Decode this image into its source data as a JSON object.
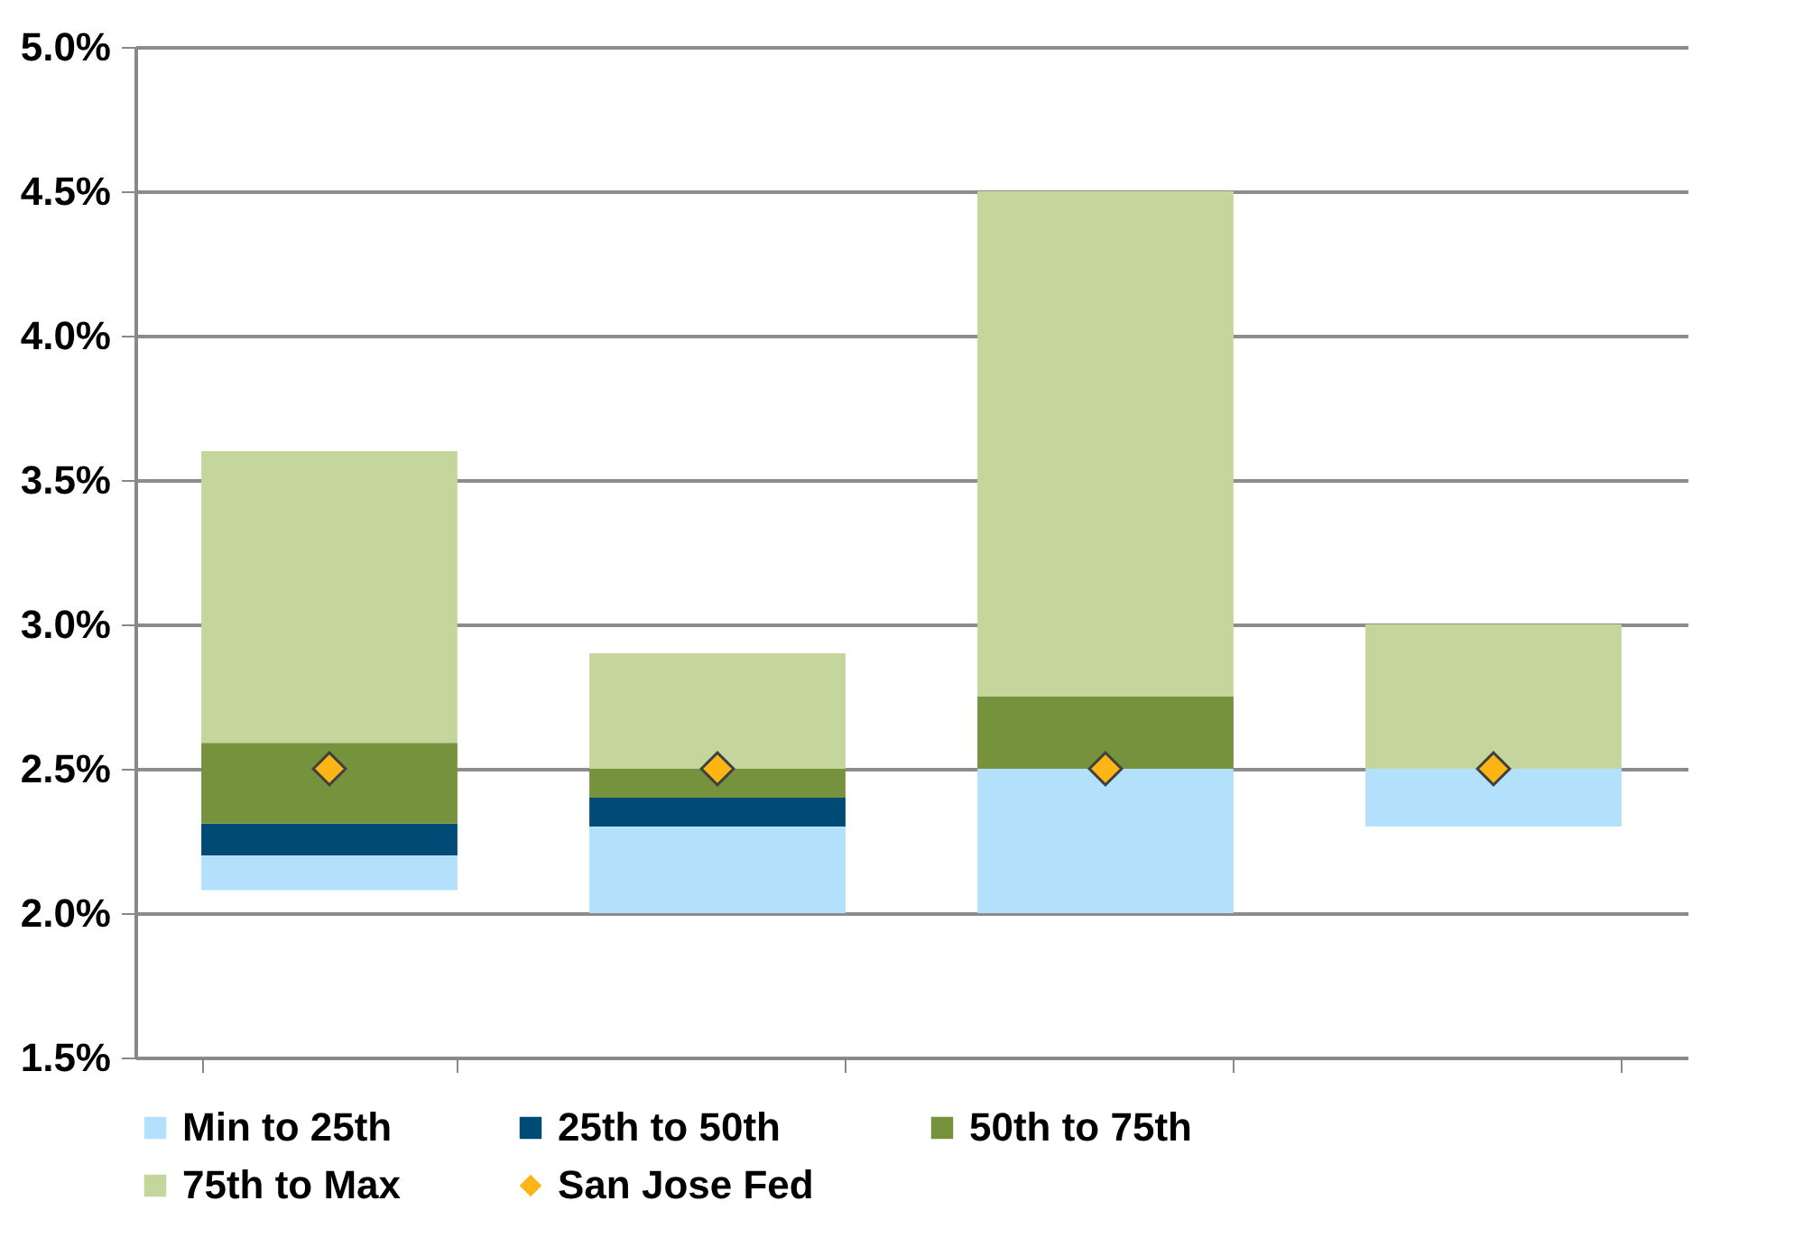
{
  "chart_data": {
    "type": "bar",
    "categories": [
      null,
      null,
      null,
      null
    ],
    "series": [
      {
        "name": "Min to 25th",
        "color": "#b3e0fb",
        "base": [
          2.08,
          2.0,
          2.0,
          2.3
        ],
        "values": [
          0.12,
          0.3,
          0.5,
          0.2
        ]
      },
      {
        "name": "25th to 50th",
        "color": "#004a76",
        "base": [
          2.2,
          2.3,
          null,
          null
        ],
        "values": [
          0.11,
          0.1,
          null,
          null
        ]
      },
      {
        "name": "50th to 75th",
        "color": "#77923c",
        "base": [
          2.31,
          2.4,
          2.5,
          null
        ],
        "values": [
          0.28,
          0.1,
          0.25,
          null
        ]
      },
      {
        "name": "75th to Max",
        "color": "#c4d69c",
        "base": [
          2.59,
          2.5,
          2.75,
          2.5
        ],
        "values": [
          1.01,
          0.4,
          1.75,
          0.5
        ]
      },
      {
        "name": "San Jose Fed",
        "type": "scatter",
        "marker": "diamond",
        "color": "#fdb515",
        "values": [
          2.5,
          2.5,
          2.5,
          2.5
        ]
      }
    ],
    "ylim": [
      1.5,
      5.0
    ],
    "yticks": [
      {
        "value": 1.5,
        "label": "1.5%"
      },
      {
        "value": 2.0,
        "label": "2.0%"
      },
      {
        "value": 2.5,
        "label": "2.5%"
      },
      {
        "value": 3.0,
        "label": "3.0%"
      },
      {
        "value": 3.5,
        "label": "3.5%"
      },
      {
        "value": 4.0,
        "label": "4.0%"
      },
      {
        "value": 4.5,
        "label": "4.5%"
      },
      {
        "value": 5.0,
        "label": "5.0%"
      }
    ],
    "grid": "y",
    "legend": "bottom"
  }
}
